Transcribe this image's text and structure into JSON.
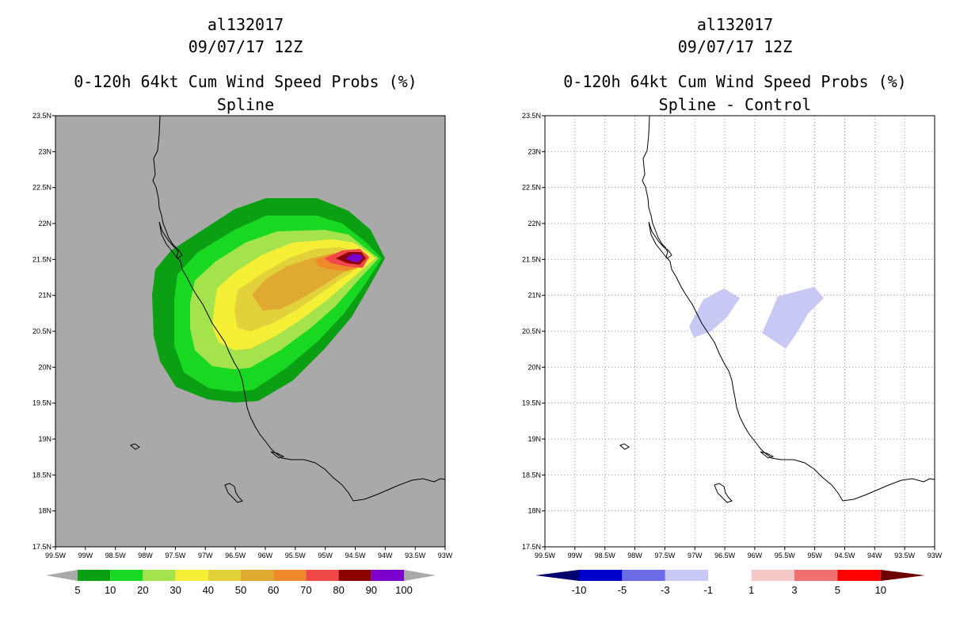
{
  "left_panel": {
    "title_lines": [
      "al132017",
      "09/07/17 12Z",
      "0-120h 64kt Cum Wind Speed Probs (%)",
      "Spline"
    ],
    "colors": {
      "background": "#a9a9a9"
    },
    "fill_levels": [
      {
        "name": "5-10",
        "color": "#0b9f14"
      },
      {
        "name": "10-20",
        "color": "#18d822"
      },
      {
        "name": "20-30",
        "color": "#a5e34c"
      },
      {
        "name": "30-40",
        "color": "#f5ef36"
      },
      {
        "name": "40-50",
        "color": "#e2d13a"
      },
      {
        "name": "50-60",
        "color": "#e0a932"
      },
      {
        "name": "60-70",
        "color": "#ef8a2b"
      },
      {
        "name": "70-80",
        "color": "#f04848"
      },
      {
        "name": "80-90",
        "color": "#8c0000"
      },
      {
        "name": "90-100",
        "color": "#7e00cc"
      }
    ],
    "colorbar": {
      "labels": [
        "5",
        "10",
        "20",
        "30",
        "40",
        "50",
        "60",
        "70",
        "80",
        "90",
        "100"
      ],
      "colors": [
        "#0b9f14",
        "#18d822",
        "#a5e34c",
        "#f5ef36",
        "#e2d13a",
        "#e0a932",
        "#ef8a2b",
        "#f04848",
        "#8c0000",
        "#7e00cc"
      ],
      "arrow_color": "#a9a9a9"
    }
  },
  "right_panel": {
    "title_lines": [
      "al132017",
      "09/07/17 12Z",
      "0-120h 64kt Cum Wind Speed Probs (%)",
      "Spline - Control"
    ],
    "colors": {
      "fill": "#c8c8f5",
      "grid": "#a0a0a0"
    },
    "colorbar": {
      "labels": [
        "-10",
        "-5",
        "-3",
        "-1",
        "1",
        "3",
        "5",
        "10"
      ],
      "colors": [
        "#0000cc",
        "#6b6be6",
        "#c8c8f5",
        "#ffffff",
        "#f5c8c8",
        "#f07070",
        "#ff0000"
      ],
      "left_arrow": "#00006e",
      "right_arrow": "#6e0000"
    }
  },
  "axes": {
    "lon_labels": [
      "99.5W",
      "99W",
      "98.5W",
      "98W",
      "97.5W",
      "97W",
      "96.5W",
      "96W",
      "95.5W",
      "95W",
      "94.5W",
      "94W",
      "93.5W",
      "93W"
    ],
    "lat_labels": [
      "23.5N",
      "23N",
      "22.5N",
      "22N",
      "21.5N",
      "21N",
      "20.5N",
      "20N",
      "19.5N",
      "19N",
      "18.5N",
      "18N",
      "17.5N"
    ]
  }
}
